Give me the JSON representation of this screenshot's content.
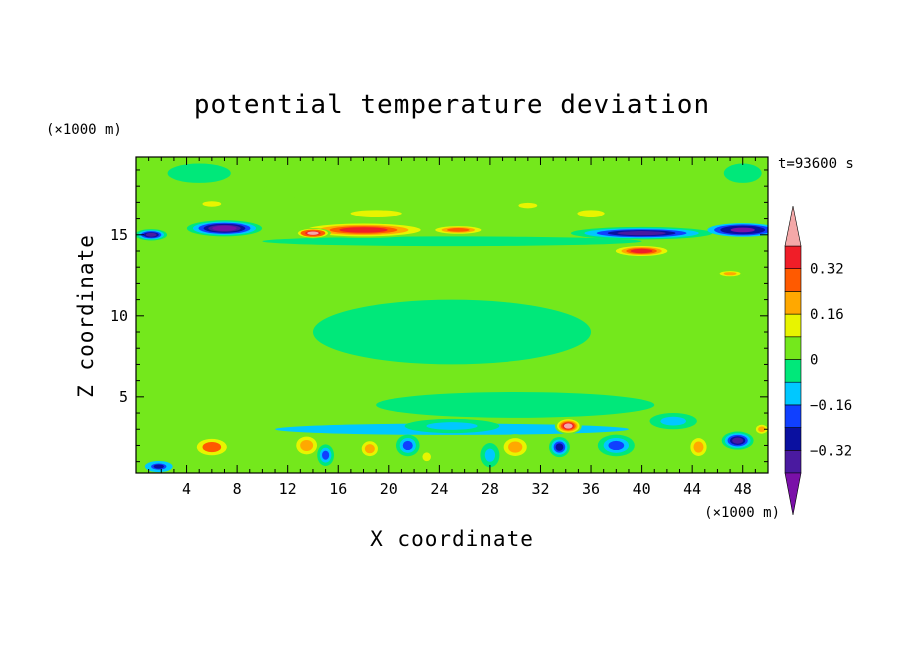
{
  "chart_data": {
    "type": "heatmap",
    "title": "potential temperature deviation",
    "xlabel": "X coordinate",
    "ylabel": "Z coordinate",
    "x_unit": "(×1000 m)",
    "y_unit": "(×1000 m)",
    "time_label": "t=93600 s",
    "xlim": [
      0,
      50
    ],
    "ylim": [
      0.3,
      19.8
    ],
    "x_ticks": [
      4,
      8,
      12,
      16,
      20,
      24,
      28,
      32,
      36,
      40,
      44,
      48
    ],
    "y_ticks": [
      5,
      10,
      15
    ],
    "colorbar": {
      "levels": [
        -0.48,
        -0.4,
        -0.32,
        -0.24,
        -0.16,
        -0.08,
        0,
        0.08,
        0.16,
        0.24,
        0.32,
        0.4,
        0.48
      ],
      "tick_labels": [
        "0.32",
        "0.16",
        "0",
        "−0.16",
        "−0.32"
      ],
      "tick_values": [
        0.32,
        0.16,
        0,
        -0.16,
        -0.32
      ],
      "colors": [
        "#7a10a8",
        "#4a1aa0",
        "#0a10a0",
        "#1040ff",
        "#00c8ff",
        "#00e87a",
        "#74e81c",
        "#e8f400",
        "#ffa800",
        "#ff5a00",
        "#f01e28",
        "#f4a8a8"
      ],
      "extend": "both"
    },
    "features": [
      {
        "x": 18,
        "z": 15.3,
        "w": 8,
        "h": 0.7,
        "v": 0.36
      },
      {
        "x": 14,
        "z": 15.1,
        "w": 2,
        "h": 0.45,
        "v": 0.48
      },
      {
        "x": 25.5,
        "z": 15.3,
        "w": 3.5,
        "h": 0.45,
        "v": 0.3
      },
      {
        "x": 7,
        "z": 15.4,
        "w": 4.2,
        "h": 0.7,
        "v": -0.42
      },
      {
        "x": 1.2,
        "z": 15.0,
        "w": 1.8,
        "h": 0.5,
        "v": -0.34
      },
      {
        "x": 40,
        "z": 15.1,
        "w": 8,
        "h": 0.55,
        "v": -0.36
      },
      {
        "x": 48,
        "z": 15.3,
        "w": 4,
        "h": 0.6,
        "v": -0.4
      },
      {
        "x": 40,
        "z": 14.0,
        "w": 3.6,
        "h": 0.55,
        "v": 0.36
      },
      {
        "x": 47,
        "z": 12.6,
        "w": 1.8,
        "h": 0.35,
        "v": 0.2
      },
      {
        "x": 6,
        "z": 16.9,
        "w": 2.2,
        "h": 0.5,
        "v": 0.14
      },
      {
        "x": 31,
        "z": 16.8,
        "w": 2.2,
        "h": 0.5,
        "v": 0.12
      },
      {
        "x": 36,
        "z": 16.3,
        "w": 3.2,
        "h": 0.6,
        "v": 0.14
      },
      {
        "x": 19,
        "z": 16.3,
        "w": 6,
        "h": 0.6,
        "v": 0.1
      },
      {
        "x": 6,
        "z": 1.9,
        "w": 2.6,
        "h": 1.1,
        "v": 0.24
      },
      {
        "x": 13.5,
        "z": 2.0,
        "w": 1.8,
        "h": 1.2,
        "v": 0.22
      },
      {
        "x": 18.5,
        "z": 1.8,
        "w": 1.4,
        "h": 1.0,
        "v": 0.18
      },
      {
        "x": 23,
        "z": 1.3,
        "w": 1.0,
        "h": 0.8,
        "v": 0.12
      },
      {
        "x": 30,
        "z": 1.9,
        "w": 2.0,
        "h": 1.2,
        "v": 0.22
      },
      {
        "x": 34.2,
        "z": 3.2,
        "w": 1.5,
        "h": 0.7,
        "v": 0.44
      },
      {
        "x": 44.5,
        "z": 1.9,
        "w": 1.4,
        "h": 1.2,
        "v": 0.2
      },
      {
        "x": 49.5,
        "z": 3.0,
        "w": 1.0,
        "h": 0.6,
        "v": 0.2
      },
      {
        "x": 47.6,
        "z": 2.3,
        "w": 1.8,
        "h": 0.8,
        "v": -0.36
      },
      {
        "x": 21.5,
        "z": 2.0,
        "w": 1.4,
        "h": 1.0,
        "v": -0.24
      },
      {
        "x": 33.5,
        "z": 1.9,
        "w": 1.2,
        "h": 0.9,
        "v": -0.3
      },
      {
        "x": 1.8,
        "z": 0.7,
        "w": 1.6,
        "h": 0.5,
        "v": -0.32
      },
      {
        "x": 15,
        "z": 1.4,
        "w": 1.0,
        "h": 1.0,
        "v": -0.18
      },
      {
        "x": 28,
        "z": 1.4,
        "w": 1.2,
        "h": 1.2,
        "v": -0.12
      },
      {
        "x": 38,
        "z": 2.0,
        "w": 2.2,
        "h": 1.0,
        "v": -0.18
      },
      {
        "x": 42.5,
        "z": 3.5,
        "w": 3.0,
        "h": 0.8,
        "v": -0.1
      },
      {
        "x": 25,
        "z": 3.2,
        "w": 6,
        "h": 0.7,
        "v": -0.1
      }
    ]
  }
}
